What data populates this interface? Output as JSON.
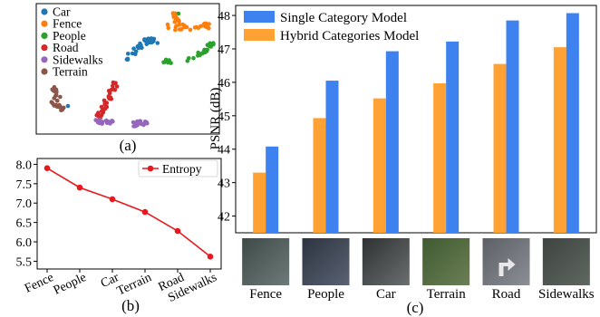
{
  "panel_a": {
    "caption": "(a)",
    "chart_data": {
      "type": "scatter",
      "legend_position": "top-left",
      "series": [
        {
          "name": "Car",
          "color": "#1f77b4"
        },
        {
          "name": "Fence",
          "color": "#ff7f0e"
        },
        {
          "name": "People",
          "color": "#2ca02c"
        },
        {
          "name": "Road",
          "color": "#d62728"
        },
        {
          "name": "Sidewalks",
          "color": "#9467bd"
        },
        {
          "name": "Terrain",
          "color": "#8c564b"
        }
      ]
    }
  },
  "panel_b": {
    "caption": "(b)",
    "chart_data": {
      "type": "line",
      "categories": [
        "Fence",
        "People",
        "Car",
        "Terrain",
        "Road",
        "Sidewalks"
      ],
      "series": [
        {
          "name": "Entropy",
          "color": "#e8191e",
          "values": [
            7.9,
            7.4,
            7.1,
            6.77,
            6.28,
            5.62
          ]
        }
      ],
      "ylim": [
        5.3,
        8.15
      ],
      "yticks": [
        "5.5",
        "6.0",
        "6.5",
        "7.0",
        "7.5",
        "8.0"
      ],
      "legend_position": "top-right",
      "grid": false
    }
  },
  "panel_c": {
    "caption": "(c)",
    "chart_data": {
      "type": "bar",
      "categories": [
        "Fence",
        "People",
        "Car",
        "Terrain",
        "Road",
        "Sidewalks"
      ],
      "series": [
        {
          "name": "Hybrid Categories Model",
          "color": "#ffa233",
          "values": [
            43.3,
            44.93,
            45.52,
            45.97,
            46.55,
            47.05
          ]
        },
        {
          "name": "Single Category Model",
          "color": "#3e82f0",
          "values": [
            44.08,
            46.05,
            46.93,
            47.22,
            47.85,
            48.07
          ]
        }
      ],
      "ylabel": "PSNR (dB)",
      "ylim": [
        41.5,
        48.3
      ],
      "yticks": [
        "42",
        "43",
        "44",
        "45",
        "46",
        "47",
        "48"
      ],
      "legend_order": [
        "Single Category Model",
        "Hybrid Categories Model"
      ],
      "legend_position": "top-left",
      "grid": false
    }
  }
}
